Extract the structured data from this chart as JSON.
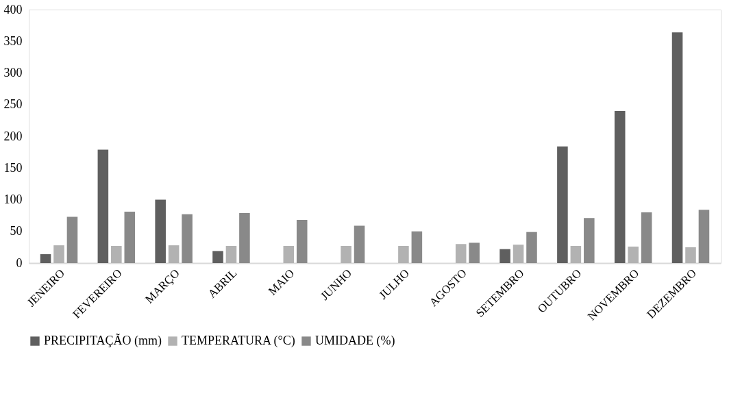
{
  "chart_data": {
    "type": "bar",
    "categories": [
      "JENEIRO",
      "FEVEREIRO",
      "MARÇO",
      "ABRIL",
      "MAIO",
      "JUNHO",
      "JULHO",
      "AGOSTO",
      "SETEMBRO",
      "OUTUBRO",
      "NOVEMBRO",
      "DEZEMBRO"
    ],
    "series": [
      {
        "name": "PRECIPITAÇÃO (mm)",
        "color": "#5f5f5f",
        "values": [
          14,
          179,
          100,
          19,
          null,
          null,
          null,
          null,
          22,
          184,
          240,
          364
        ]
      },
      {
        "name": "TEMPERATURA (°C)",
        "color": "#b2b2b2",
        "values": [
          28,
          27,
          28,
          27,
          27,
          27,
          27,
          30,
          29,
          27,
          26,
          25
        ]
      },
      {
        "name": "UMIDADE (%)",
        "color": "#898989",
        "values": [
          73,
          81,
          77,
          79,
          68,
          59,
          50,
          32,
          49,
          71,
          80,
          84
        ]
      }
    ],
    "ylim": [
      0,
      400
    ],
    "yticks": [
      0,
      50,
      100,
      150,
      200,
      250,
      300,
      350,
      400
    ],
    "grid": false,
    "legend": "bottom"
  }
}
